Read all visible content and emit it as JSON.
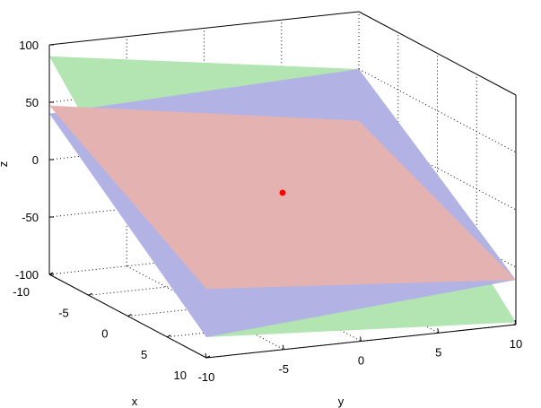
{
  "chart_data": {
    "type": "surface3d",
    "xlabel": "x",
    "ylabel": "y",
    "zlabel": "z",
    "xlim": [
      -10,
      10
    ],
    "ylim": [
      -10,
      10
    ],
    "zlim": [
      -100,
      100
    ],
    "xticks": [
      -10,
      -5,
      0,
      5,
      10
    ],
    "yticks": [
      -10,
      -5,
      0,
      5,
      10
    ],
    "zticks": [
      -100,
      -50,
      0,
      50,
      100
    ],
    "grid": true,
    "series": [
      {
        "kind": "plane",
        "color": "#b2e5b2",
        "corners": [
          {
            "x": -10,
            "y": -10,
            "z": 90
          },
          {
            "x": -10,
            "y": 10,
            "z": 50
          },
          {
            "x": 10,
            "y": 10,
            "z": -98
          },
          {
            "x": 10,
            "y": -10,
            "z": -82
          }
        ]
      },
      {
        "kind": "plane",
        "color": "#b2b2e5",
        "corners": [
          {
            "x": -10,
            "y": -10,
            "z": 40
          },
          {
            "x": -10,
            "y": 10,
            "z": 50
          },
          {
            "x": 10,
            "y": 10,
            "z": -61
          },
          {
            "x": 10,
            "y": -10,
            "z": -82
          }
        ]
      },
      {
        "kind": "plane",
        "color": "#e5b2b2",
        "corners": [
          {
            "x": -10,
            "y": -10,
            "z": 47
          },
          {
            "x": -10,
            "y": 10,
            "z": 5
          },
          {
            "x": 10,
            "y": 10,
            "z": -61
          },
          {
            "x": 10,
            "y": -10,
            "z": -40
          }
        ]
      },
      {
        "kind": "point",
        "color": "#ff0000",
        "x": 0,
        "y": 0,
        "z": -7
      }
    ]
  }
}
